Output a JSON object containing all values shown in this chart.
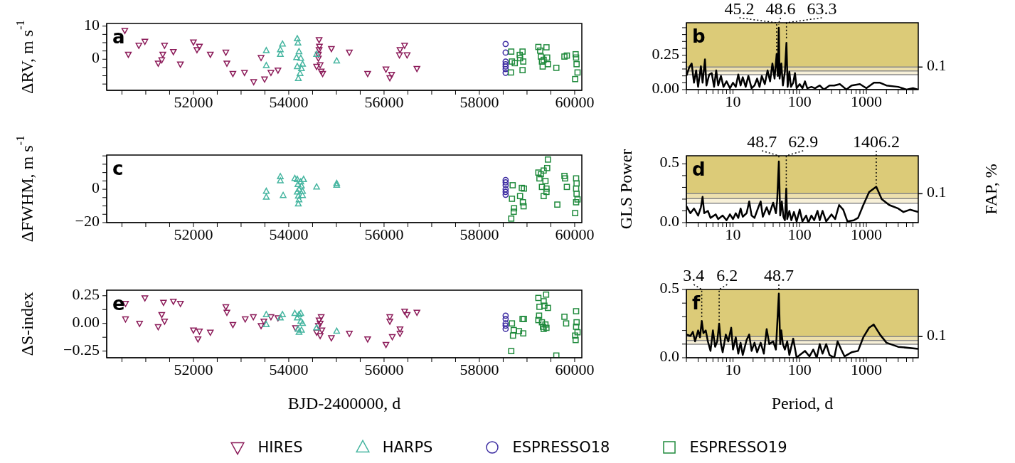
{
  "chart_data": [
    {
      "type": "scatter",
      "ylabel": "ΔRV, m s$^{-1}$",
      "annotations": [
        "a"
      ],
      "legend": "bottom",
      "xlim": [
        50180,
        60150
      ],
      "xticks": [
        {
          "value": 50500,
          "label": null
        },
        {
          "value": 51000,
          "label": null
        },
        {
          "value": 51500,
          "label": null
        },
        52000,
        {
          "value": 52500,
          "label": null
        },
        {
          "value": 53000,
          "label": null
        },
        {
          "value": 53500,
          "label": null
        },
        54000,
        {
          "value": 54500,
          "label": null
        },
        {
          "value": 55000,
          "label": null
        },
        {
          "value": 55500,
          "label": null
        },
        56000,
        {
          "value": 56500,
          "label": null
        },
        {
          "value": 57000,
          "label": null
        },
        {
          "value": 57500,
          "label": null
        },
        58000,
        {
          "value": 58500,
          "label": null
        },
        {
          "value": 59000,
          "label": null
        },
        {
          "value": 59500,
          "label": null
        },
        60000
      ],
      "ylim": [
        -9.4,
        10.8
      ],
      "yticks": [
        {
          "value": -7.5,
          "label": null
        },
        {
          "value": -5,
          "label": null
        },
        {
          "value": -2.5,
          "label": null
        },
        {
          "value": 0,
          "label": "0"
        },
        {
          "value": 2.5,
          "label": null
        },
        {
          "value": 5,
          "label": null
        },
        {
          "value": 7.5,
          "label": null
        },
        10
      ],
      "series": [
        {
          "name": "HIRES",
          "color": "#8c1c5a",
          "marker": "triangle-down",
          "x": [
            50560,
            50634,
            50855,
            50981,
            51261,
            51335,
            51357,
            51394,
            51579,
            51727,
            52000,
            52074,
            52126,
            52355,
            52680,
            52702,
            52828,
            53072,
            53264,
            53419,
            53493,
            53626,
            53774,
            54637,
            54644,
            54637,
            54622,
            54622,
            54585,
            54659,
            54681,
            54711,
            54895,
            55272,
            55656,
            56040,
            56121,
            56159,
            56335,
            56432,
            56324,
            56484,
            56690
          ],
          "values": [
            8.7,
            1.5,
            4.2,
            5.4,
            -1.2,
            -0.2,
            1.5,
            4.2,
            2.3,
            -1.5,
            5.2,
            2.9,
            3.9,
            1.5,
            2.1,
            -1.2,
            -4.3,
            -4.0,
            -6.8,
            0.5,
            -6.0,
            -4.0,
            -3.3,
            5.9,
            3.9,
            2.9,
            1.5,
            0.3,
            -2.2,
            -1.7,
            -3.6,
            -4.3,
            3.2,
            2.1,
            -4.3,
            -3.0,
            -5.6,
            -4.6,
            2.9,
            4.2,
            1.3,
            1.3,
            -2.8
          ]
        },
        {
          "name": "HARPS",
          "color": "#45b5a0",
          "marker": "triangle",
          "x": [
            53529,
            53529,
            53824,
            53869,
            53824,
            54179,
            54193,
            54164,
            54216,
            54253,
            54179,
            54267,
            54238,
            54201,
            54290,
            54585,
            55006
          ],
          "values": [
            2.6,
            -1.9,
            2.9,
            4.6,
            1.5,
            6.2,
            4.9,
            0.5,
            2.3,
            0.3,
            -2.2,
            -2.8,
            -4.3,
            -5.8,
            -1.5,
            1.5,
            -0.5
          ]
        },
        {
          "name": "ESPRESSO18",
          "color": "#3a2aa0",
          "marker": "circle",
          "x": [
            58551,
            58551,
            58551,
            58551,
            58551,
            58551,
            58551
          ],
          "values": [
            4.6,
            2.0,
            -0.7,
            -1.5,
            -2.2,
            -3.0,
            -4.1
          ]
        },
        {
          "name": "ESPRESSO19",
          "color": "#1f8a3c",
          "marker": "square",
          "x": [
            58669,
            58684,
            58662,
            58743,
            58847,
            58906,
            58921,
            58906,
            58854,
            59238,
            59276,
            59291,
            59328,
            59349,
            59408,
            59423,
            59438,
            59313,
            59615,
            59785,
            59836,
            60020,
            60030,
            60040,
            60060,
            60010
          ],
          "values": [
            2.3,
            -0.7,
            -4.0,
            -1.2,
            1.3,
            2.3,
            -0.7,
            -3.3,
            0.3,
            3.7,
            2.6,
            0.8,
            -2.2,
            -0.2,
            3.6,
            0.5,
            -1.5,
            -0.7,
            -2.6,
            0.8,
            1.1,
            1.5,
            0.5,
            -1.5,
            -4.0,
            -6.0
          ]
        }
      ]
    },
    {
      "type": "line",
      "log": "x",
      "annotations": [
        "b",
        "0.1",
        {
          "text": "45.2",
          "x": 45.2,
          "y": 0.26
        },
        {
          "text": "48.6",
          "x": 48.6,
          "y": 0.45
        },
        {
          "text": "63.3",
          "x": 63.3,
          "y": 0.34
        }
      ],
      "xlim": [
        2,
        6000
      ],
      "xticks": [
        {
          "value": 2,
          "label": null
        },
        {
          "value": 3,
          "label": null
        },
        {
          "value": 4,
          "label": null
        },
        {
          "value": 5,
          "label": null
        },
        {
          "value": 6,
          "label": null
        },
        {
          "value": 7,
          "label": null
        },
        {
          "value": 8,
          "label": null
        },
        {
          "value": 9,
          "label": null
        },
        10,
        {
          "value": 20,
          "label": null
        },
        {
          "value": 30,
          "label": null
        },
        {
          "value": 40,
          "label": null
        },
        {
          "value": 50,
          "label": null
        },
        {
          "value": 60,
          "label": null
        },
        {
          "value": 70,
          "label": null
        },
        {
          "value": 80,
          "label": null
        },
        {
          "value": 90,
          "label": null
        },
        100,
        {
          "value": 200,
          "label": null
        },
        {
          "value": 300,
          "label": null
        },
        {
          "value": 400,
          "label": null
        },
        {
          "value": 500,
          "label": null
        },
        {
          "value": 600,
          "label": null
        },
        {
          "value": 700,
          "label": null
        },
        {
          "value": 800,
          "label": null
        },
        {
          "value": 900,
          "label": null
        },
        1000,
        {
          "value": 2000,
          "label": null
        },
        {
          "value": 3000,
          "label": null
        },
        {
          "value": 4000,
          "label": null
        },
        {
          "value": 5000,
          "label": null
        }
      ],
      "ylim": [
        0,
        0.486
      ],
      "yticks": [
        {
          "value": 0,
          "label": "0.00"
        },
        {
          "value": 0.05,
          "label": null
        },
        {
          "value": 0.1,
          "label": null
        },
        {
          "value": 0.15,
          "label": null
        },
        {
          "value": 0.2,
          "label": null
        },
        {
          "value": 0.25,
          "label": "0.25"
        },
        {
          "value": 0.3,
          "label": null
        },
        {
          "value": 0.35,
          "label": null
        },
        {
          "value": 0.4,
          "label": null
        },
        {
          "value": 0.45,
          "label": null
        }
      ],
      "bands": [
        {
          "axis": "y",
          "from": 0.164,
          "to": 0.486,
          "color": "#dccb78"
        },
        {
          "axis": "y",
          "from": 0.136,
          "to": 0.164,
          "color": "#ede0ad"
        },
        {
          "axis": "y",
          "from": 0.108,
          "to": 0.136,
          "color": "#f7f0d8"
        }
      ],
      "ref_lines": [
        {
          "axis": "y",
          "value": 0.164,
          "color": "#8a8a8a"
        },
        {
          "axis": "y",
          "value": 0.136,
          "color": "#8a8a8a"
        },
        {
          "axis": "y",
          "value": 0.108,
          "color": "#8a8a8a"
        }
      ],
      "series": [
        {
          "color": "#000000",
          "x": [
            2,
            2.2,
            2.4,
            2.6,
            2.8,
            3,
            3.3,
            3.5,
            3.8,
            4,
            4.4,
            4.8,
            5.2,
            5.6,
            6,
            6.6,
            7.2,
            8,
            9,
            10,
            11,
            12,
            13,
            14,
            15.5,
            17,
            19,
            21,
            23,
            25,
            27,
            30,
            33,
            36,
            39,
            42,
            45.2,
            47,
            48.6,
            50,
            53,
            56,
            60,
            63.3,
            66,
            70,
            74,
            80,
            85,
            90,
            100,
            110,
            120,
            130,
            150,
            170,
            200,
            230,
            280,
            330,
            400,
            450,
            500,
            600,
            800,
            1000,
            1300,
            1600,
            2000,
            3000,
            4000,
            5000,
            6000
          ],
          "values": [
            0.1,
            0.16,
            0.19,
            0.05,
            0.14,
            0.02,
            0.17,
            0.05,
            0.22,
            0.03,
            0.11,
            0.12,
            0.02,
            0.14,
            0.03,
            0.1,
            0.02,
            0.06,
            0.01,
            0.05,
            0.02,
            0.11,
            0.03,
            0.09,
            0.02,
            0.1,
            0.01,
            0.03,
            0.08,
            0.02,
            0.1,
            0.04,
            0.14,
            0.06,
            0.19,
            0.08,
            0.26,
            0.1,
            0.45,
            0.08,
            0.19,
            0.03,
            0.13,
            0.34,
            0.02,
            0.13,
            0.02,
            0.05,
            0.12,
            0.01,
            0.04,
            0.01,
            0.06,
            0.01,
            0.02,
            0.01,
            0.03,
            0,
            0.03,
            0.03,
            0.04,
            0.02,
            0,
            0.03,
            0.04,
            0.01,
            0.05,
            0.05,
            0.03,
            0.02,
            0,
            0.01,
            0
          ]
        }
      ]
    },
    {
      "type": "scatter",
      "ylabel": "ΔFWHM, m s$^{-1}$",
      "annotations": [
        "c"
      ],
      "xlim": [
        50180,
        60150
      ],
      "xticks": [
        {
          "value": 50500,
          "label": null
        },
        {
          "value": 51000,
          "label": null
        },
        {
          "value": 51500,
          "label": null
        },
        52000,
        {
          "value": 52500,
          "label": null
        },
        {
          "value": 53000,
          "label": null
        },
        {
          "value": 53500,
          "label": null
        },
        54000,
        {
          "value": 54500,
          "label": null
        },
        {
          "value": 55000,
          "label": null
        },
        {
          "value": 55500,
          "label": null
        },
        56000,
        {
          "value": 56500,
          "label": null
        },
        {
          "value": 57000,
          "label": null
        },
        {
          "value": 57500,
          "label": null
        },
        58000,
        {
          "value": 58500,
          "label": null
        },
        {
          "value": 59000,
          "label": null
        },
        {
          "value": 59500,
          "label": null
        },
        60000
      ],
      "ylim": [
        -20,
        20.5
      ],
      "yticks": [
        {
          "value": -20,
          "label": "−20"
        },
        {
          "value": -15,
          "label": null
        },
        {
          "value": -10,
          "label": null
        },
        {
          "value": -5,
          "label": null
        },
        {
          "value": 0,
          "label": "0"
        },
        {
          "value": 5,
          "label": null
        },
        {
          "value": 10,
          "label": null
        },
        {
          "value": 15,
          "label": null
        },
        {
          "value": 20,
          "label": null
        }
      ],
      "series": [
        {
          "color": "#45b5a0",
          "marker": "triangle",
          "x": [
            53529,
            53529,
            53824,
            53824,
            53883,
            54127,
            54179,
            54193,
            54216,
            54179,
            54201,
            54216,
            54201,
            54253,
            54267,
            54290,
            54312,
            54290,
            54585,
            55006,
            55006
          ],
          "values": [
            -1.2,
            -4.7,
            7.6,
            5.1,
            -3.7,
            6.5,
            5.9,
            2.9,
            0,
            -1.6,
            -4.1,
            -6.3,
            -8.8,
            4.5,
            2.0,
            -3.7,
            5.9,
            -1.2,
            1.4,
            3.5,
            2.4
          ]
        },
        {
          "color": "#3a2aa0",
          "marker": "circle",
          "x": [
            58551,
            58551,
            58551,
            58551,
            58551,
            58551
          ],
          "values": [
            5.5,
            4.1,
            2.4,
            0,
            -1.6,
            -3.3
          ]
        },
        {
          "color": "#1f8a3c",
          "marker": "square",
          "x": [
            58699,
            58684,
            58728,
            58721,
            58669,
            58854,
            58891,
            58935,
            58913,
            58928,
            59238,
            59261,
            59291,
            59313,
            59349,
            59387,
            59408,
            59423,
            59438,
            59349,
            59408,
            59636,
            59785,
            59799,
            59836,
            60030,
            60040,
            60030,
            60040,
            60060,
            60030,
            60010
          ],
          "values": [
            2.4,
            -5.7,
            -11.4,
            -13.5,
            -17.6,
            -4.1,
            0.8,
            0.4,
            -7.8,
            -10.2,
            10,
            6.5,
            9,
            1.4,
            11.2,
            4.9,
            0.4,
            12.7,
            17.8,
            -4.1,
            -1.6,
            -9.2,
            8,
            6.5,
            1.4,
            6.5,
            3.5,
            0.4,
            -2.7,
            -6.1,
            -7.8,
            -14.3
          ]
        }
      ]
    },
    {
      "type": "line",
      "log": "x",
      "ylabel": "GLS Power",
      "y2label": "FAP, %",
      "annotations": [
        "d",
        "0.1",
        {
          "text": "48.7",
          "x": 48.7,
          "y": 0.52
        },
        {
          "text": "62.9",
          "x": 62.9,
          "y": 0.29
        },
        {
          "text": "1406.2",
          "x": 1406.2,
          "y": 0.305
        }
      ],
      "xlim": [
        2,
        6000
      ],
      "xticks": [
        {
          "value": 2,
          "label": null
        },
        {
          "value": 3,
          "label": null
        },
        {
          "value": 4,
          "label": null
        },
        {
          "value": 5,
          "label": null
        },
        {
          "value": 6,
          "label": null
        },
        {
          "value": 7,
          "label": null
        },
        {
          "value": 8,
          "label": null
        },
        {
          "value": 9,
          "label": null
        },
        10,
        {
          "value": 20,
          "label": null
        },
        {
          "value": 30,
          "label": null
        },
        {
          "value": 40,
          "label": null
        },
        {
          "value": 50,
          "label": null
        },
        {
          "value": 60,
          "label": null
        },
        {
          "value": 70,
          "label": null
        },
        {
          "value": 80,
          "label": null
        },
        {
          "value": 90,
          "label": null
        },
        100,
        {
          "value": 200,
          "label": null
        },
        {
          "value": 300,
          "label": null
        },
        {
          "value": 400,
          "label": null
        },
        {
          "value": 500,
          "label": null
        },
        {
          "value": 600,
          "label": null
        },
        {
          "value": 700,
          "label": null
        },
        {
          "value": 800,
          "label": null
        },
        {
          "value": 900,
          "label": null
        },
        1000,
        {
          "value": 2000,
          "label": null
        },
        {
          "value": 3000,
          "label": null
        },
        {
          "value": 4000,
          "label": null
        },
        {
          "value": 5000,
          "label": null
        }
      ],
      "ylim": [
        0,
        0.569
      ],
      "yticks": [
        {
          "value": 0,
          "label": "0.0"
        },
        {
          "value": 0.1,
          "label": null
        },
        {
          "value": 0.2,
          "label": null
        },
        {
          "value": 0.3,
          "label": null
        },
        {
          "value": 0.4,
          "label": null
        },
        {
          "value": 0.5,
          "label": "0.5"
        }
      ],
      "bands": [
        {
          "axis": "y",
          "from": 0.246,
          "to": 0.569,
          "color": "#dccb78"
        },
        {
          "axis": "y",
          "from": 0.205,
          "to": 0.246,
          "color": "#ede0ad"
        },
        {
          "axis": "y",
          "from": 0.165,
          "to": 0.205,
          "color": "#f7f0d8"
        }
      ],
      "ref_lines": [
        {
          "axis": "y",
          "value": 0.246,
          "color": "#8a8a8a"
        },
        {
          "axis": "y",
          "value": 0.205,
          "color": "#8a8a8a"
        },
        {
          "axis": "y",
          "value": 0.165,
          "color": "#8a8a8a"
        }
      ],
      "series": [
        {
          "color": "#000000",
          "x": [
            2,
            2.3,
            2.6,
            3,
            3.3,
            3.5,
            3.7,
            4.2,
            4.6,
            5.5,
            6,
            7,
            8,
            9,
            10,
            11,
            12,
            13,
            14,
            16,
            17.5,
            19,
            21,
            24,
            26,
            28,
            32,
            35,
            40,
            44,
            46,
            48.7,
            51,
            54,
            57,
            60,
            62.9,
            65,
            70,
            75,
            82,
            90,
            100,
            110,
            125,
            135,
            150,
            165,
            185,
            200,
            220,
            250,
            300,
            340,
            390,
            450,
            520,
            650,
            750,
            900,
            1100,
            1406.2,
            1700,
            2200,
            3000,
            3600,
            4500,
            6000
          ],
          "values": [
            0.14,
            0.08,
            0.12,
            0.06,
            0.13,
            0.22,
            0.08,
            0.1,
            0.04,
            0.07,
            0.03,
            0.06,
            0.02,
            0.07,
            0.03,
            0.08,
            0.04,
            0.12,
            0.05,
            0.08,
            0.18,
            0.06,
            0.04,
            0.13,
            0.18,
            0.05,
            0.13,
            0.07,
            0.17,
            0.08,
            0.19,
            0.52,
            0.06,
            0.18,
            0.05,
            0.02,
            0.29,
            0.03,
            0.1,
            0.02,
            0.09,
            0.01,
            0.11,
            0.01,
            0.06,
            0,
            0.06,
            0.02,
            0.1,
            0.02,
            0.1,
            0.01,
            0.07,
            0.03,
            0.15,
            0.11,
            0.01,
            0.02,
            0.04,
            0.15,
            0.26,
            0.305,
            0.2,
            0.15,
            0.12,
            0.09,
            0.11,
            0.09
          ]
        }
      ]
    },
    {
      "type": "scatter",
      "ylabel": "ΔS-index",
      "xlabel": "BJD-2400000, d",
      "annotations": [
        "e"
      ],
      "xlim": [
        50180,
        60150
      ],
      "xticks": [
        {
          "value": 50500,
          "label": null
        },
        {
          "value": 51000,
          "label": null
        },
        {
          "value": 51500,
          "label": null
        },
        52000,
        {
          "value": 52500,
          "label": null
        },
        {
          "value": 53000,
          "label": null
        },
        {
          "value": 53500,
          "label": null
        },
        54000,
        {
          "value": 54500,
          "label": null
        },
        {
          "value": 55000,
          "label": null
        },
        {
          "value": 55500,
          "label": null
        },
        56000,
        {
          "value": 56500,
          "label": null
        },
        {
          "value": 57000,
          "label": null
        },
        {
          "value": 57500,
          "label": null
        },
        58000,
        {
          "value": 58500,
          "label": null
        },
        {
          "value": 59000,
          "label": null
        },
        {
          "value": 59500,
          "label": null
        },
        60000
      ],
      "ylim": [
        -0.31,
        0.3
      ],
      "yticks": [
        {
          "value": -0.25,
          "label": "−0.25"
        },
        {
          "value": -0.125,
          "label": null
        },
        {
          "value": 0,
          "label": "0.00"
        },
        {
          "value": 0.125,
          "label": null
        },
        {
          "value": 0.25,
          "label": "0.25"
        }
      ],
      "series": [
        {
          "color": "#8c1c5a",
          "marker": "triangle-down",
          "x": [
            50575,
            50575,
            50981,
            50870,
            51261,
            51335,
            51372,
            51394,
            51579,
            51727,
            52000,
            52096,
            52126,
            52355,
            52680,
            52702,
            52828,
            53087,
            53257,
            53419,
            53478,
            53626,
            53774,
            54142,
            54637,
            54659,
            54681,
            54622,
            54585,
            54659,
            54696,
            54895,
            55272,
            55656,
            56040,
            56121,
            56121,
            56173,
            56335,
            56335,
            56432,
            56484,
            56690
          ],
          "values": [
            0.18,
            0.04,
            0.23,
            0,
            -0.03,
            0.08,
            0.19,
            0.02,
            0.2,
            0.18,
            -0.06,
            -0.14,
            -0.07,
            -0.08,
            0.15,
            0.1,
            -0.01,
            0.04,
            0.06,
            -0.02,
            0.02,
            0.06,
            0.05,
            -0.04,
            0.03,
            0,
            0.06,
            -0.02,
            -0.08,
            -0.11,
            -0.06,
            -0.13,
            -0.09,
            -0.14,
            -0.19,
            0.06,
            0.02,
            -0.12,
            -0.05,
            -0.09,
            0.11,
            0.08,
            0.1
          ]
        },
        {
          "color": "#45b5a0",
          "marker": "triangle",
          "x": [
            53529,
            53529,
            53824,
            53869,
            54127,
            54179,
            54216,
            54253,
            54193,
            54216,
            54267,
            54290,
            54253,
            54585,
            55006
          ],
          "values": [
            0.08,
            -0.01,
            0.05,
            0.08,
            0.09,
            0.05,
            0.08,
            0.02,
            -0.05,
            -0.08,
            -0.06,
            0,
            0.09,
            -0.04,
            -0.07
          ]
        },
        {
          "color": "#3a2aa0",
          "marker": "circle",
          "x": [
            58551,
            58551,
            58551,
            58551,
            58551
          ],
          "values": [
            0.07,
            0.04,
            0,
            -0.02,
            -0.05
          ]
        },
        {
          "color": "#1f8a3c",
          "marker": "square",
          "x": [
            58684,
            58721,
            58706,
            58669,
            58832,
            58906,
            58921,
            58935,
            59238,
            59261,
            59253,
            59238,
            59313,
            59349,
            59364,
            59401,
            59438,
            59335,
            59386,
            59408,
            59349,
            59615,
            59785,
            59821,
            60030,
            60040,
            60030,
            60060,
            60010,
            60020
          ],
          "values": [
            0,
            -0.06,
            -0.11,
            -0.25,
            -0.07,
            0.04,
            -0.09,
            0.04,
            0.23,
            0.15,
            0.07,
            0.03,
            0.01,
            0.2,
            0.16,
            0.26,
            0.14,
            -0.03,
            -0.01,
            -0.04,
            -0.05,
            -0.29,
            0.06,
            0,
            0.11,
            0.01,
            -0.03,
            -0.08,
            -0.11,
            -0.15
          ]
        }
      ]
    },
    {
      "type": "line",
      "log": "x",
      "xlabel": "Period, d",
      "annotations": [
        "f",
        "0.1",
        {
          "text": "3.4",
          "x": 3.4,
          "y": 0.27
        },
        {
          "text": "6.2",
          "x": 6.2,
          "y": 0.25
        },
        {
          "text": "48.7",
          "x": 48.7,
          "y": 0.47
        }
      ],
      "xlim": [
        2,
        6000
      ],
      "xticks": [
        {
          "value": 2,
          "label": null
        },
        {
          "value": 3,
          "label": null
        },
        {
          "value": 4,
          "label": null
        },
        {
          "value": 5,
          "label": null
        },
        {
          "value": 6,
          "label": null
        },
        {
          "value": 7,
          "label": null
        },
        {
          "value": 8,
          "label": null
        },
        {
          "value": 9,
          "label": null
        },
        10,
        {
          "value": 20,
          "label": null
        },
        {
          "value": 30,
          "label": null
        },
        {
          "value": 40,
          "label": null
        },
        {
          "value": 50,
          "label": null
        },
        {
          "value": 60,
          "label": null
        },
        {
          "value": 70,
          "label": null
        },
        {
          "value": 80,
          "label": null
        },
        {
          "value": 90,
          "label": null
        },
        100,
        {
          "value": 200,
          "label": null
        },
        {
          "value": 300,
          "label": null
        },
        {
          "value": 400,
          "label": null
        },
        {
          "value": 500,
          "label": null
        },
        {
          "value": 600,
          "label": null
        },
        {
          "value": 700,
          "label": null
        },
        {
          "value": 800,
          "label": null
        },
        {
          "value": 900,
          "label": null
        },
        1000,
        {
          "value": 2000,
          "label": null
        },
        {
          "value": 3000,
          "label": null
        },
        {
          "value": 4000,
          "label": null
        },
        {
          "value": 5000,
          "label": null
        }
      ],
      "ylim": [
        0,
        0.5
      ],
      "yticks": [
        {
          "value": 0,
          "label": "0.0"
        },
        {
          "value": 0.1,
          "label": null
        },
        {
          "value": 0.2,
          "label": null
        },
        {
          "value": 0.3,
          "label": null
        },
        {
          "value": 0.4,
          "label": null
        },
        {
          "value": 0.5,
          "label": "0.5"
        }
      ],
      "bands": [
        {
          "axis": "y",
          "from": 0.155,
          "to": 0.5,
          "color": "#dccb78"
        },
        {
          "axis": "y",
          "from": 0.126,
          "to": 0.155,
          "color": "#ede0ad"
        },
        {
          "axis": "y",
          "from": 0.099,
          "to": 0.126,
          "color": "#f7f0d8"
        }
      ],
      "ref_lines": [
        {
          "axis": "y",
          "value": 0.155,
          "color": "#8a8a8a"
        },
        {
          "axis": "y",
          "value": 0.126,
          "color": "#8a8a8a"
        },
        {
          "axis": "y",
          "value": 0.099,
          "color": "#8a8a8a"
        }
      ],
      "series": [
        {
          "color": "#000000",
          "x": [
            2,
            2.3,
            2.5,
            2.7,
            3,
            3.2,
            3.4,
            3.6,
            3.9,
            4.2,
            4.6,
            5,
            5.4,
            5.8,
            6.2,
            6.6,
            7,
            7.8,
            8.5,
            9.4,
            10,
            11,
            12,
            13,
            14,
            16,
            17.5,
            19,
            21,
            23,
            26,
            29,
            32,
            35,
            40,
            44,
            48.7,
            51,
            53,
            56,
            60,
            65,
            70,
            80,
            90,
            100,
            120,
            140,
            160,
            180,
            200,
            220,
            250,
            280,
            330,
            370,
            420,
            470,
            600,
            750,
            900,
            1100,
            1290,
            1600,
            2000,
            3000,
            6000
          ],
          "values": [
            0.17,
            0.16,
            0.19,
            0.12,
            0.2,
            0.15,
            0.27,
            0.18,
            0.2,
            0.12,
            0.05,
            0.2,
            0.08,
            0.12,
            0.25,
            0.1,
            0.04,
            0.17,
            0.12,
            0.22,
            0.06,
            0.15,
            0.03,
            0.11,
            0.02,
            0.13,
            0.17,
            0.05,
            0.11,
            0.04,
            0.11,
            0.03,
            0.21,
            0.1,
            0.12,
            0.06,
            0.47,
            0.1,
            0.2,
            0.1,
            0.06,
            0.12,
            0.02,
            0.14,
            0,
            0.02,
            0.05,
            0.01,
            0.06,
            0,
            0.1,
            0.03,
            0.1,
            0.02,
            0,
            0.12,
            0.06,
            0.01,
            0.04,
            0.05,
            0.15,
            0.22,
            0.243,
            0.17,
            0.11,
            0.08,
            0.065
          ]
        }
      ]
    }
  ]
}
